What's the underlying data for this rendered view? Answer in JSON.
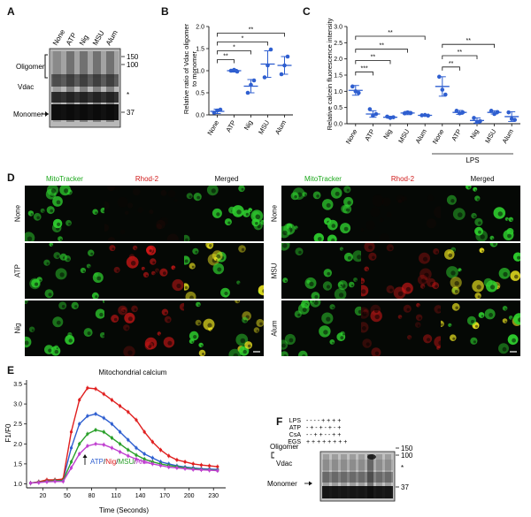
{
  "panels": {
    "A": {
      "label": "A",
      "lanes": [
        "None",
        "ATP",
        "Nig",
        "MSU",
        "Alum"
      ],
      "oligomer": "Oligomer",
      "vdac": "Vdac",
      "monomer": "Monomer",
      "marker_150": "150",
      "marker_100": "100",
      "marker_37": "37",
      "asterisk": "*"
    },
    "B": {
      "label": "B",
      "ylabel_line1": "Relative ratio of Vdac oligomer",
      "ylabel_line2": "to monomer",
      "sig": [
        "**",
        "*",
        "*",
        "**"
      ]
    },
    "C": {
      "label": "C",
      "ylabel": "Relative calcein fluorescence intensity",
      "lps": "LPS",
      "sig": [
        "***",
        "**",
        "**",
        "**",
        "**",
        "**",
        "**"
      ]
    },
    "D": {
      "label": "D",
      "col_mito": "MitoTracker",
      "col_rhod": "Rhod-2",
      "col_merged": "Merged",
      "rows_left": [
        "None",
        "ATP",
        "Nig"
      ],
      "rows_right": [
        "None",
        "MSU",
        "Alum"
      ]
    },
    "E": {
      "label": "E",
      "title": "Mitochondrial calcium",
      "ylabel": "F1/F0",
      "xlabel": "Time (Seconds)",
      "legend": [
        "ATP",
        "/",
        "Nig",
        "/",
        "MSU",
        "/",
        "Alum"
      ]
    },
    "F": {
      "label": "F",
      "rows": [
        {
          "name": "LPS",
          "marks": "-  -  -  -  +  +  +  +"
        },
        {
          "name": "ATP",
          "marks": "-  +  -  +  -  +  -  +"
        },
        {
          "name": "CsA",
          "marks": "-  -  +  +  -  -  +  +"
        },
        {
          "name": "EGS",
          "marks": "+  +  +  +  +  +  +  +"
        }
      ],
      "oligomer": "Oligomer",
      "vdac": "Vdac",
      "monomer": "Monomer",
      "marker_150": "150",
      "marker_100": "100",
      "marker_37": "37",
      "asterisk": "*"
    }
  },
  "colors": {
    "blue": "#2f5fd0",
    "red": "#e02020",
    "green": "#2aa02a",
    "magenta": "#c040d0",
    "mito": "#2fd12f",
    "rhod": "#e01818"
  },
  "chart_data": [
    {
      "type": "scatter",
      "title": "",
      "xlabel": "",
      "ylabel": "Relative ratio of Vdac oligomer to monomer",
      "categories": [
        "None",
        "ATP",
        "Nig",
        "MSU",
        "Alum"
      ],
      "means": [
        0.08,
        1.0,
        0.65,
        1.15,
        1.12
      ],
      "errors": [
        0.05,
        0.03,
        0.15,
        0.3,
        0.2
      ],
      "points": [
        [
          0.05,
          0.1,
          0.12
        ],
        [
          1.0,
          1.02,
          0.98
        ],
        [
          0.5,
          0.68,
          0.78
        ],
        [
          0.85,
          1.12,
          1.48
        ],
        [
          0.92,
          1.12,
          1.32
        ]
      ],
      "yticks": [
        0.0,
        0.5,
        1.0,
        1.5,
        2.0
      ],
      "ylim": [
        0,
        2.0
      ]
    },
    {
      "type": "scatter",
      "title": "",
      "xlabel": "",
      "ylabel": "Relative calcein fluorescence intensity",
      "categories": [
        "None",
        "ATP",
        "Nig",
        "MSU",
        "Alum",
        "None",
        "ATP",
        "Nig",
        "MSU",
        "Alum"
      ],
      "means": [
        1.03,
        0.3,
        0.2,
        0.33,
        0.26,
        1.15,
        0.35,
        0.1,
        0.35,
        0.22
      ],
      "errors": [
        0.15,
        0.1,
        0.03,
        0.05,
        0.02,
        0.3,
        0.06,
        0.08,
        0.05,
        0.15
      ],
      "points": [
        [
          1.15,
          1.0,
          0.95
        ],
        [
          0.45,
          0.25,
          0.3
        ],
        [
          0.22,
          0.18,
          0.2
        ],
        [
          0.32,
          0.35,
          0.33
        ],
        [
          0.26,
          0.27,
          0.25
        ],
        [
          1.45,
          1.05,
          0.9
        ],
        [
          0.4,
          0.32,
          0.35
        ],
        [
          0.18,
          0.05,
          0.08
        ],
        [
          0.4,
          0.3,
          0.36
        ],
        [
          0.35,
          0.15,
          0.12
        ]
      ],
      "yticks": [
        0.0,
        0.5,
        1.0,
        1.5,
        2.0,
        2.5,
        3.0
      ],
      "ylim": [
        0,
        3.0
      ]
    },
    {
      "type": "line",
      "title": "Mitochondrial calcium",
      "xlabel": "Time (Seconds)",
      "ylabel": "F1/F0",
      "x": [
        5,
        15,
        25,
        35,
        45,
        55,
        65,
        75,
        85,
        95,
        105,
        115,
        125,
        135,
        145,
        155,
        165,
        175,
        185,
        195,
        205,
        215,
        225,
        235
      ],
      "xticks": [
        20,
        50,
        80,
        110,
        140,
        170,
        200,
        230
      ],
      "yticks": [
        1.0,
        1.5,
        2.0,
        2.5,
        3.0,
        3.5
      ],
      "ylim": [
        0.9,
        3.6
      ],
      "xlim": [
        0,
        245
      ],
      "series": [
        {
          "name": "ATP",
          "color": "#2f5fd0",
          "values": [
            1.02,
            1.05,
            1.08,
            1.1,
            1.1,
            1.9,
            2.5,
            2.7,
            2.75,
            2.65,
            2.5,
            2.3,
            2.1,
            1.9,
            1.75,
            1.65,
            1.55,
            1.5,
            1.45,
            1.42,
            1.4,
            1.38,
            1.37,
            1.36
          ]
        },
        {
          "name": "Nig",
          "color": "#e02020",
          "values": [
            1.02,
            1.05,
            1.1,
            1.1,
            1.12,
            2.3,
            3.1,
            3.4,
            3.38,
            3.25,
            3.1,
            2.95,
            2.8,
            2.6,
            2.3,
            2.05,
            1.85,
            1.7,
            1.6,
            1.55,
            1.5,
            1.47,
            1.45,
            1.43
          ]
        },
        {
          "name": "MSU",
          "color": "#2aa02a",
          "values": [
            1.02,
            1.04,
            1.06,
            1.08,
            1.08,
            1.55,
            2.0,
            2.25,
            2.35,
            2.3,
            2.15,
            2.0,
            1.85,
            1.72,
            1.62,
            1.55,
            1.5,
            1.46,
            1.43,
            1.4,
            1.38,
            1.36,
            1.35,
            1.34
          ]
        },
        {
          "name": "Alum",
          "color": "#c040d0",
          "values": [
            1.02,
            1.03,
            1.05,
            1.06,
            1.06,
            1.4,
            1.75,
            1.95,
            2.0,
            1.98,
            1.9,
            1.8,
            1.7,
            1.62,
            1.55,
            1.5,
            1.46,
            1.42,
            1.4,
            1.38,
            1.36,
            1.35,
            1.34,
            1.33
          ]
        }
      ]
    }
  ]
}
